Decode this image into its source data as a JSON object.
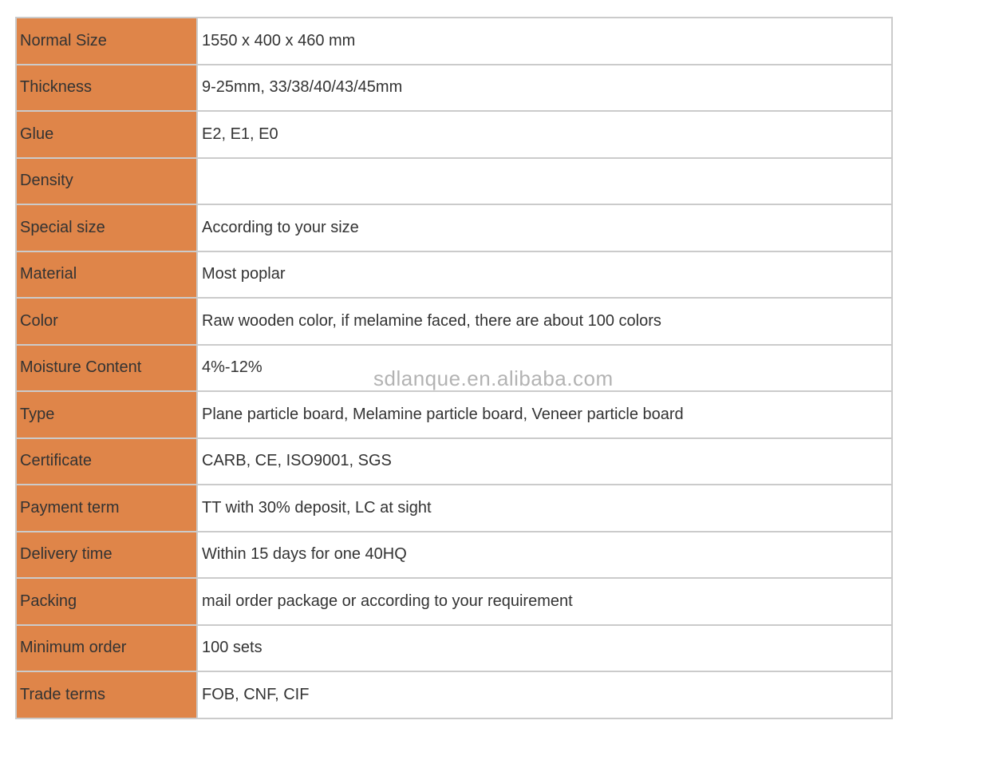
{
  "spec_table": {
    "rows": [
      {
        "label": "Normal Size",
        "value": "1550 x 400 x 460 mm"
      },
      {
        "label": "Thickness",
        "value": "9-25mm, 33/38/40/43/45mm"
      },
      {
        "label": "Glue",
        "value": "E2, E1, E0"
      },
      {
        "label": "Density",
        "value": ""
      },
      {
        "label": "Special size",
        "value": "According to your size"
      },
      {
        "label": "Material",
        "value": "Most poplar"
      },
      {
        "label": "Color",
        "value": "Raw wooden color, if melamine faced, there are about 100 colors"
      },
      {
        "label": "Moisture Content",
        "value": "4%-12%"
      },
      {
        "label": "Type",
        "value": "Plane particle board, Melamine particle board, Veneer particle board"
      },
      {
        "label": "Certificate",
        "value": "CARB, CE, ISO9001, SGS"
      },
      {
        "label": "Payment term",
        "value": "TT with 30% deposit, LC at sight"
      },
      {
        "label": "Delivery time",
        "value": "Within 15 days for one 40HQ"
      },
      {
        "label": "Packing",
        "value": "mail order package or according to your requirement"
      },
      {
        "label": "Minimum order",
        "value": "100 sets"
      },
      {
        "label": "Trade terms",
        "value": "FOB, CNF, CIF"
      }
    ]
  },
  "watermark": {
    "text": "sdlanque.en.alibaba.com",
    "color": "#b3b3b3"
  },
  "colors": {
    "label_bg": "#df8549",
    "border": "#cbcbcb",
    "text": "#333333",
    "page_bg": "#ffffff"
  }
}
